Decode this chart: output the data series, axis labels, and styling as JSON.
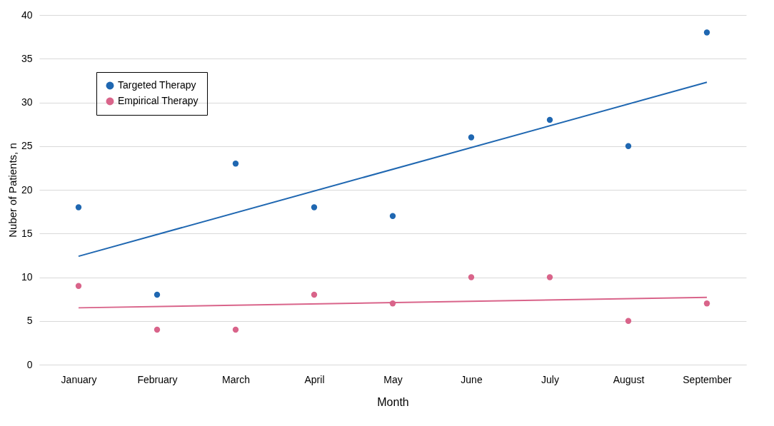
{
  "chart_data": {
    "type": "scatter",
    "xlabel": "Month",
    "ylabel": "Nuber of Patients, n",
    "categories": [
      "January",
      "February",
      "March",
      "April",
      "May",
      "June",
      "July",
      "August",
      "September"
    ],
    "series": [
      {
        "name": "Targeted Therapy",
        "color": "#1f67b1",
        "values": [
          18,
          8,
          23,
          18,
          17,
          26,
          28,
          25,
          38
        ]
      },
      {
        "name": "Empirical Therapy",
        "color": "#d9648a",
        "values": [
          9,
          4,
          4,
          8,
          7,
          10,
          10,
          5,
          7
        ]
      },
      {
        "type": "line",
        "marker": "none",
        "color": "#1f67b1",
        "x": [
          "January",
          "September"
        ],
        "values": [
          12.4,
          32.3
        ]
      },
      {
        "type": "line",
        "marker": "none",
        "color": "#d9648a",
        "x": [
          "January",
          "September"
        ],
        "values": [
          6.5,
          7.7
        ]
      }
    ],
    "ylim": [
      0,
      40
    ],
    "yticks": [
      0,
      5,
      10,
      15,
      20,
      25,
      30,
      35,
      40
    ],
    "grid": "y",
    "legend": "top left",
    "marker": "circle"
  }
}
